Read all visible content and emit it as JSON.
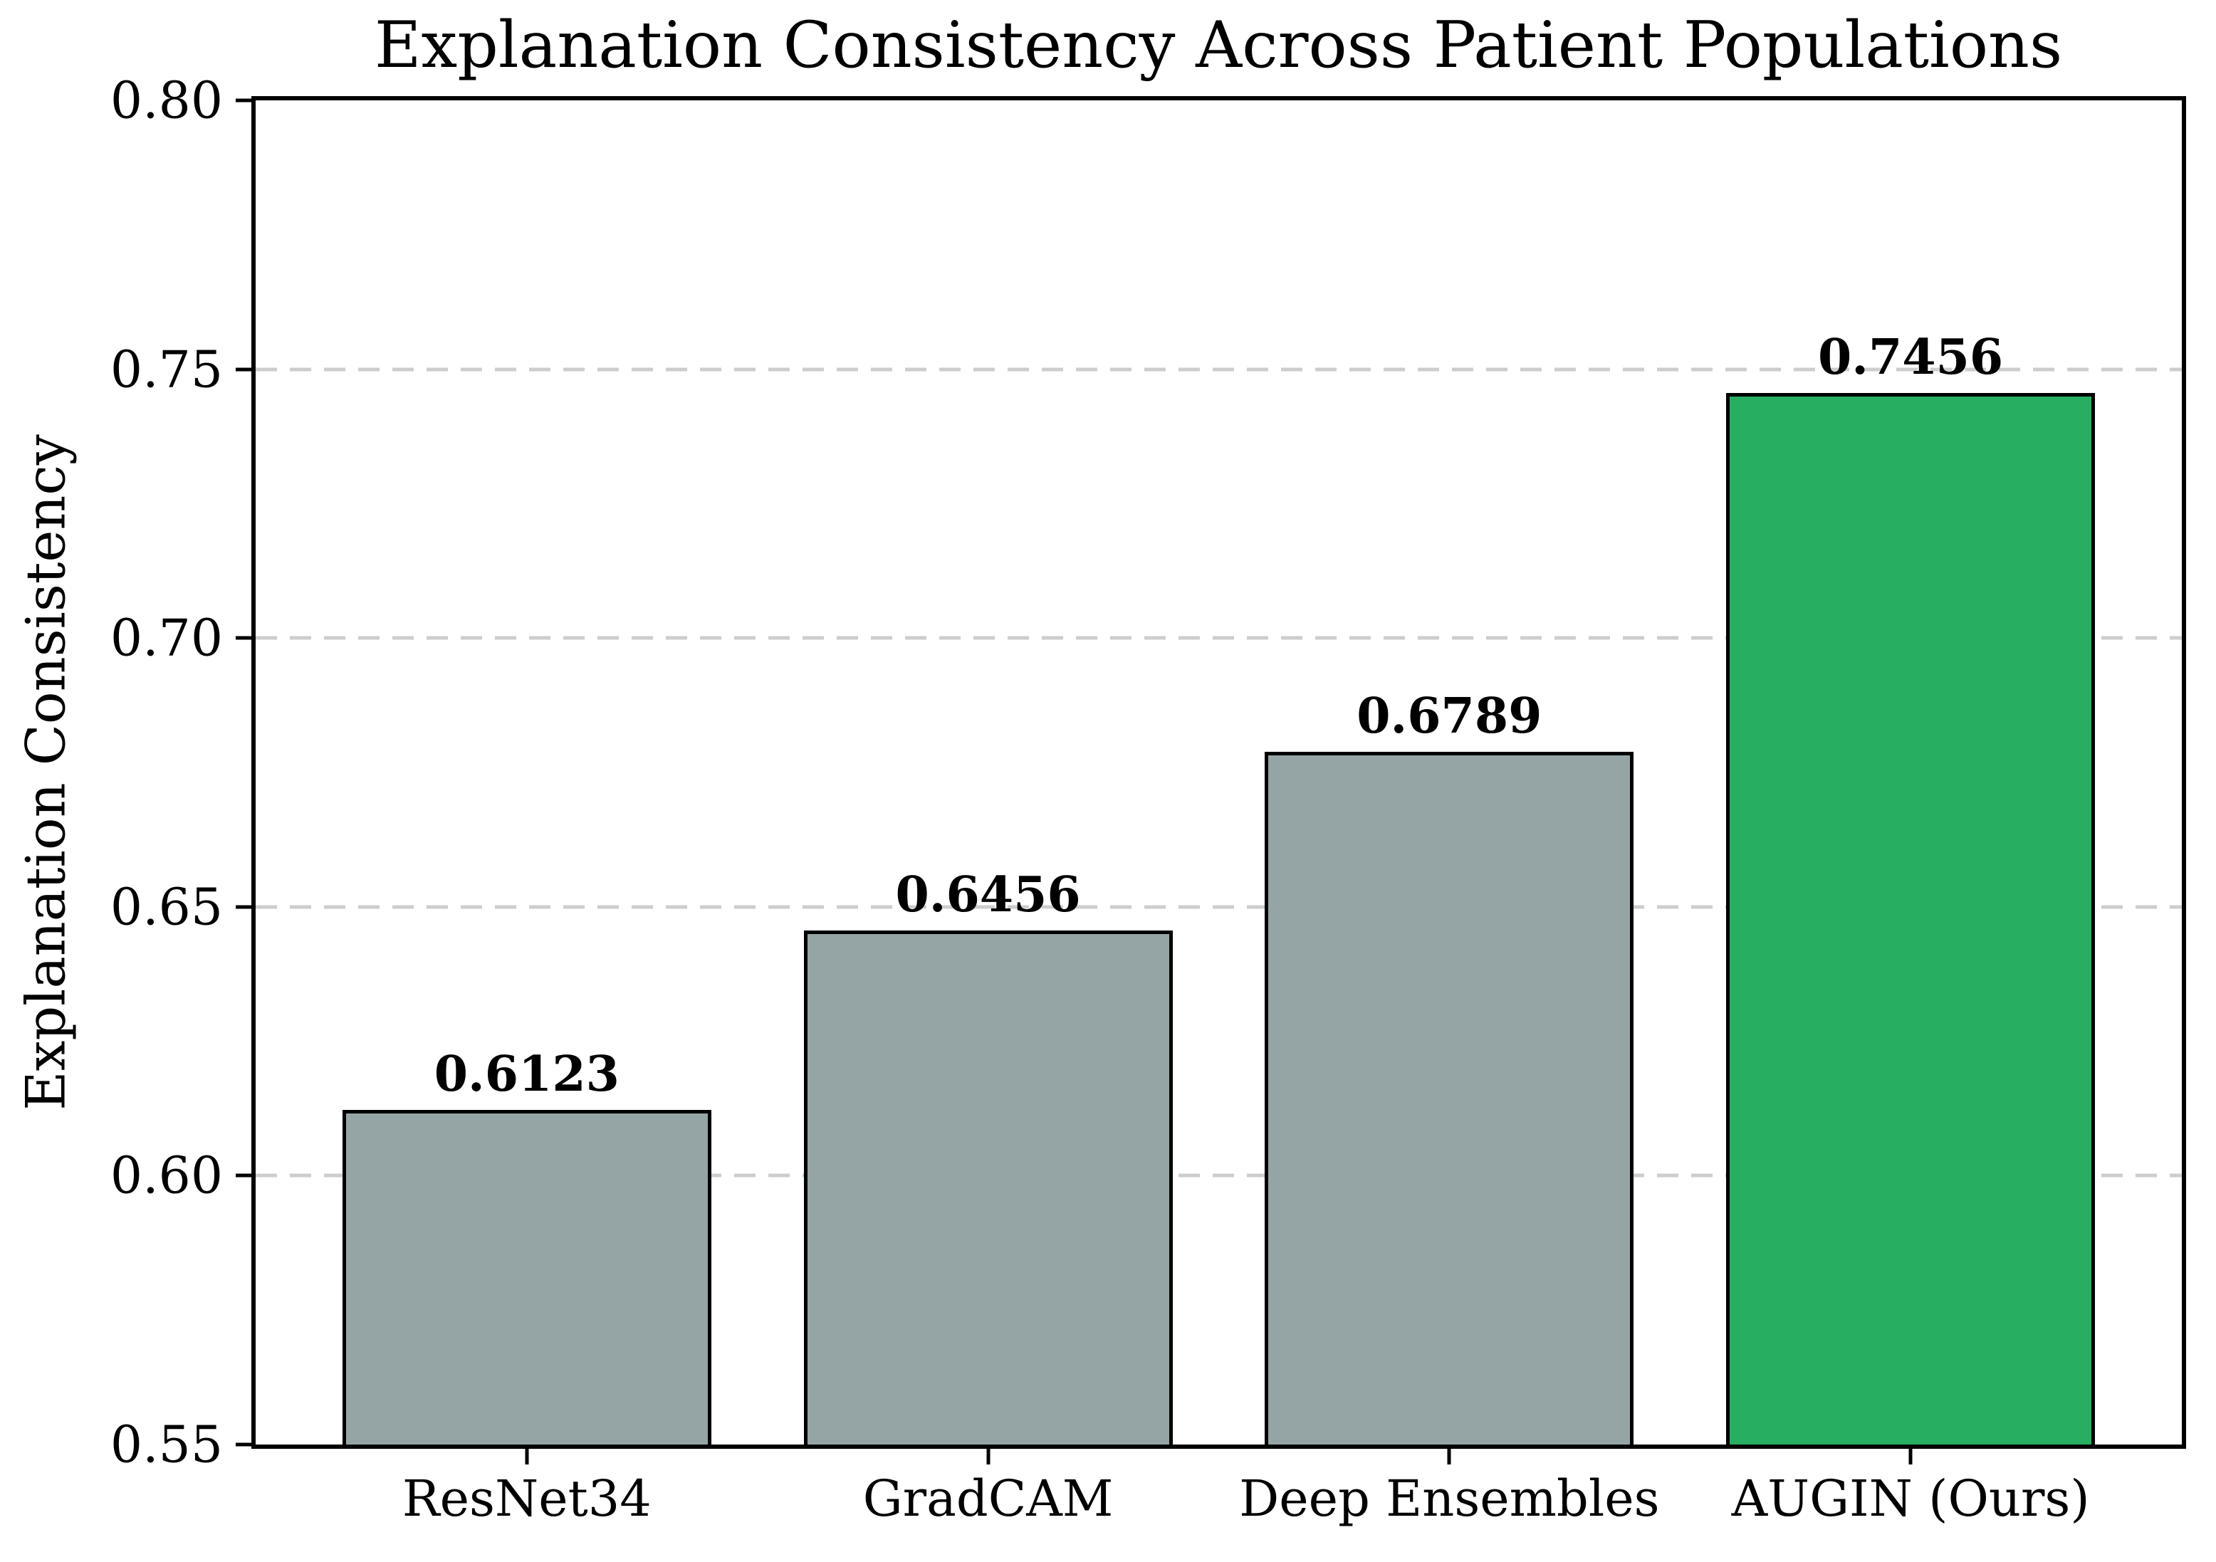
{
  "chart_data": {
    "type": "bar",
    "title": "Explanation Consistency Across Patient Populations",
    "xlabel": "",
    "ylabel": "Explanation Consistency",
    "categories": [
      "ResNet34",
      "GradCAM",
      "Deep Ensembles",
      "AUGIN (Ours)"
    ],
    "values": [
      0.6123,
      0.6456,
      0.6789,
      0.7456
    ],
    "value_labels": [
      "0.6123",
      "0.6456",
      "0.6789",
      "0.7456"
    ],
    "highlight_index": 3,
    "ylim": [
      0.55,
      0.8
    ],
    "yticks": [
      0.55,
      0.6,
      0.65,
      0.7,
      0.75,
      0.8
    ],
    "ytick_labels": [
      "0.55",
      "0.60",
      "0.65",
      "0.70",
      "0.75",
      "0.80"
    ],
    "grid": "horizontal-dashed",
    "legend": "none",
    "bar_width_fraction": 0.8,
    "colors": {
      "bar_default": "#95a5a6",
      "bar_highlight": "#27ae60",
      "bar_edge": "#000000",
      "grid": "#cdcdcd",
      "text": "#000000",
      "background": "#ffffff"
    }
  }
}
